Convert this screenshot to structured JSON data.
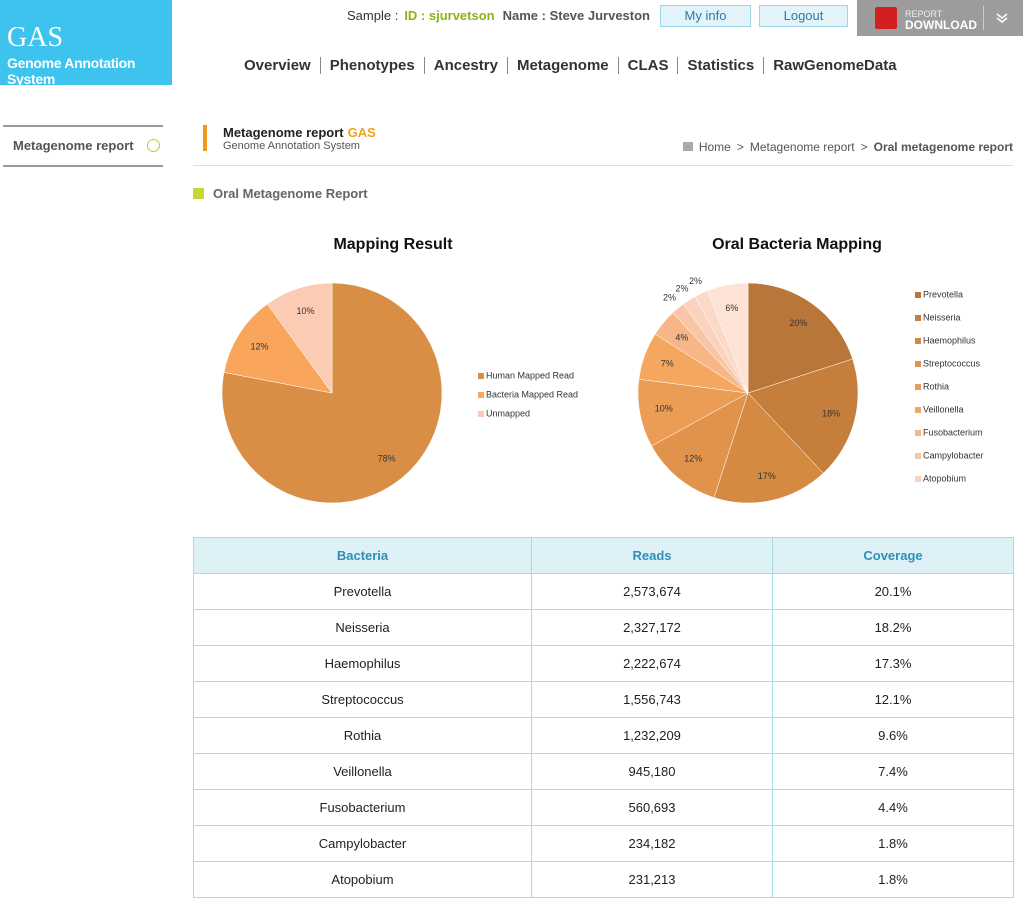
{
  "logo": {
    "title": "GAS",
    "subtitle": "Genome Annotation System"
  },
  "user": {
    "label": "Sample :",
    "id": "ID : sjurvetson",
    "name": "Name : Steve Jurveston"
  },
  "buttons": [
    "My info",
    "Logout"
  ],
  "download": {
    "top": "REPORT",
    "bottom": "DOWNLOAD"
  },
  "nav": [
    "Overview",
    "Phenotypes",
    "Ancestry",
    "Metagenome",
    "CLAS",
    "Statistics",
    "RawGenomeData"
  ],
  "sidebar": [
    "Metagenome report"
  ],
  "page_title": {
    "title": "Metagenome report",
    "brand": "GAS",
    "subtitle": "Genome Annotation System"
  },
  "breadcrumb": {
    "separator": ">",
    "items": [
      "Home",
      "Metagenome report",
      "Oral metagenome report"
    ]
  },
  "section": "Oral Metagenome Report",
  "chart_data": [
    {
      "type": "pie",
      "title": "Mapping Result",
      "categories": [
        "Human Mapped Read",
        "Bacteria Mapped Read",
        "Unmapped"
      ],
      "values": [
        78,
        12,
        10
      ],
      "value_labels": [
        "78%",
        "12%",
        "10%"
      ],
      "colors": [
        "#d88e45",
        "#f9a55b",
        "#fbcbb3"
      ],
      "legend": "right"
    },
    {
      "type": "pie",
      "title": "Oral Bacteria Mapping",
      "categories": [
        "Prevotella",
        "Neisseria",
        "Haemophilus",
        "Streptococcus",
        "Rothia",
        "Veillonella",
        "Fusobacterium",
        "Campylobacter",
        "Atopobium",
        null,
        null
      ],
      "values": [
        20,
        18,
        17,
        12,
        10,
        7,
        4,
        2,
        2,
        2,
        6
      ],
      "value_labels": [
        "20%",
        "18%",
        "17%",
        "12%",
        "10%",
        "7%",
        "4%",
        "2%",
        "2%",
        "2%",
        "6%"
      ],
      "colors": [
        "#b87739",
        "#c67e3c",
        "#d58a42",
        "#e2934b",
        "#eb9c55",
        "#f6a75f",
        "#f7b688",
        "#f8c5a6",
        "#fad2bf",
        "#fbd9c9",
        "#fde2d5"
      ],
      "legend": "right"
    }
  ],
  "table": {
    "header": [
      "Bacteria",
      "Reads",
      "Coverage"
    ],
    "rows": [
      [
        "Prevotella",
        "2,573,674",
        "20.1%"
      ],
      [
        "Neisseria",
        "2,327,172",
        "18.2%"
      ],
      [
        "Haemophilus",
        "2,222,674",
        "17.3%"
      ],
      [
        "Streptococcus",
        "1,556,743",
        "12.1%"
      ],
      [
        "Rothia",
        "1,232,209",
        "9.6%"
      ],
      [
        "Veillonella",
        "945,180",
        "7.4%"
      ],
      [
        "Fusobacterium",
        "560,693",
        "4.4%"
      ],
      [
        "Campylobacter",
        "234,182",
        "1.8%"
      ],
      [
        "Atopobium",
        "231,213",
        "1.8%"
      ]
    ]
  }
}
